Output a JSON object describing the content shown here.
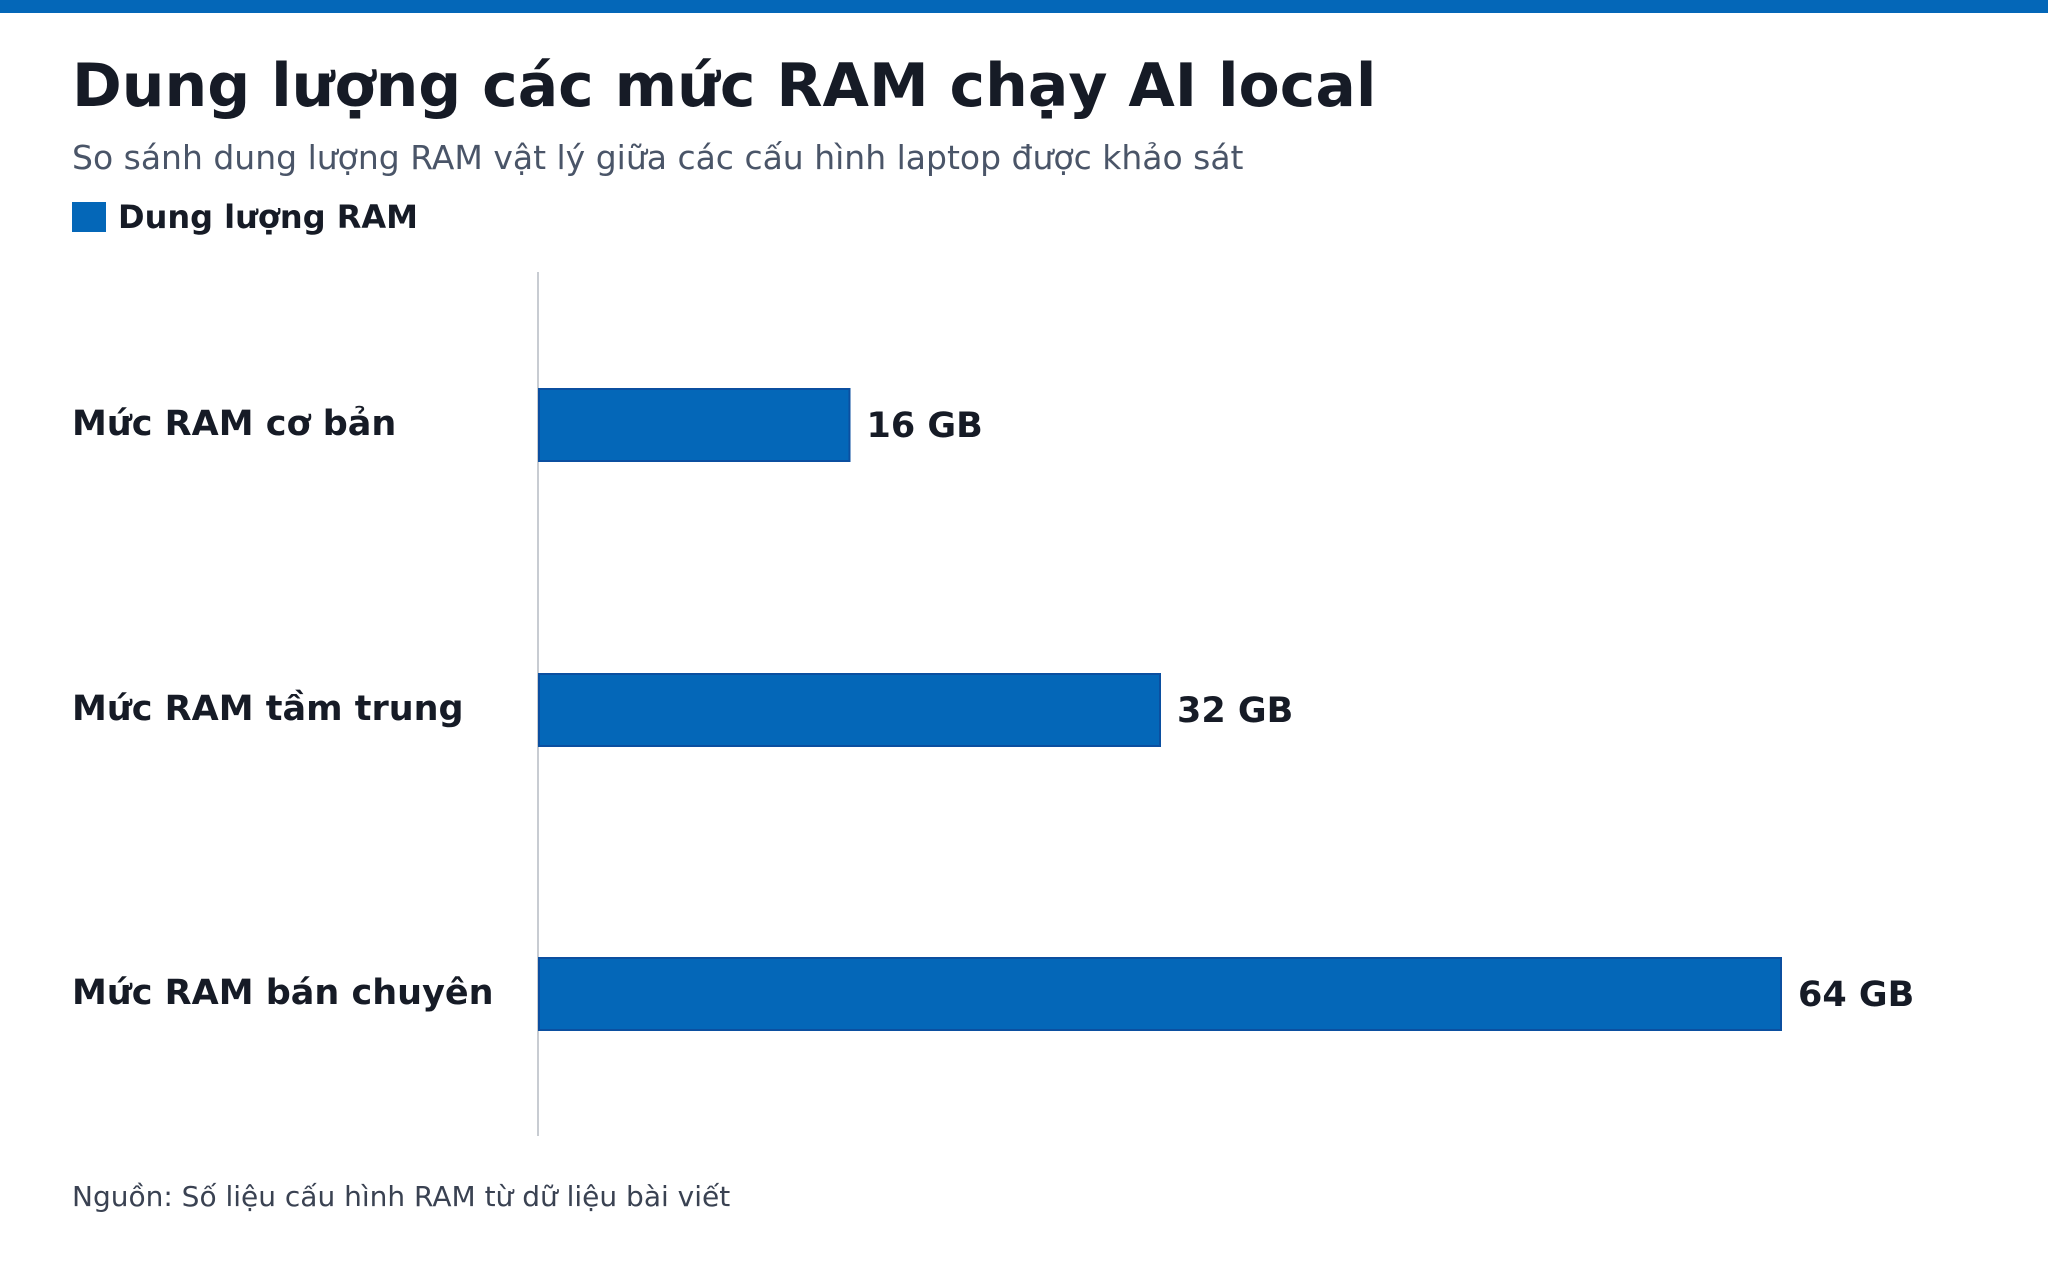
{
  "colors": {
    "accent": "#0467b8",
    "bar": "#0467b8",
    "bar_border": "#0b4fa0",
    "axis": "#c8ccd2"
  },
  "chart_data": {
    "type": "bar",
    "orientation": "horizontal",
    "title": "Dung lượng các mức RAM chạy AI local",
    "subtitle": "So sánh dung lượng RAM vật lý giữa các cấu hình laptop được khảo sát",
    "categories": [
      "Mức RAM cơ bản",
      "Mức RAM tầm trung",
      "Mức RAM bán chuyên"
    ],
    "series": [
      {
        "name": "Dung lượng RAM",
        "values": [
          16,
          32,
          64
        ],
        "labels": [
          "16 GB",
          "32 GB",
          "64 GB"
        ]
      }
    ],
    "xlim": [
      0,
      64
    ],
    "grid": false,
    "legend_position": "top-left",
    "source": "Nguồn: Số liệu cấu hình RAM từ dữ liệu bài viết"
  }
}
